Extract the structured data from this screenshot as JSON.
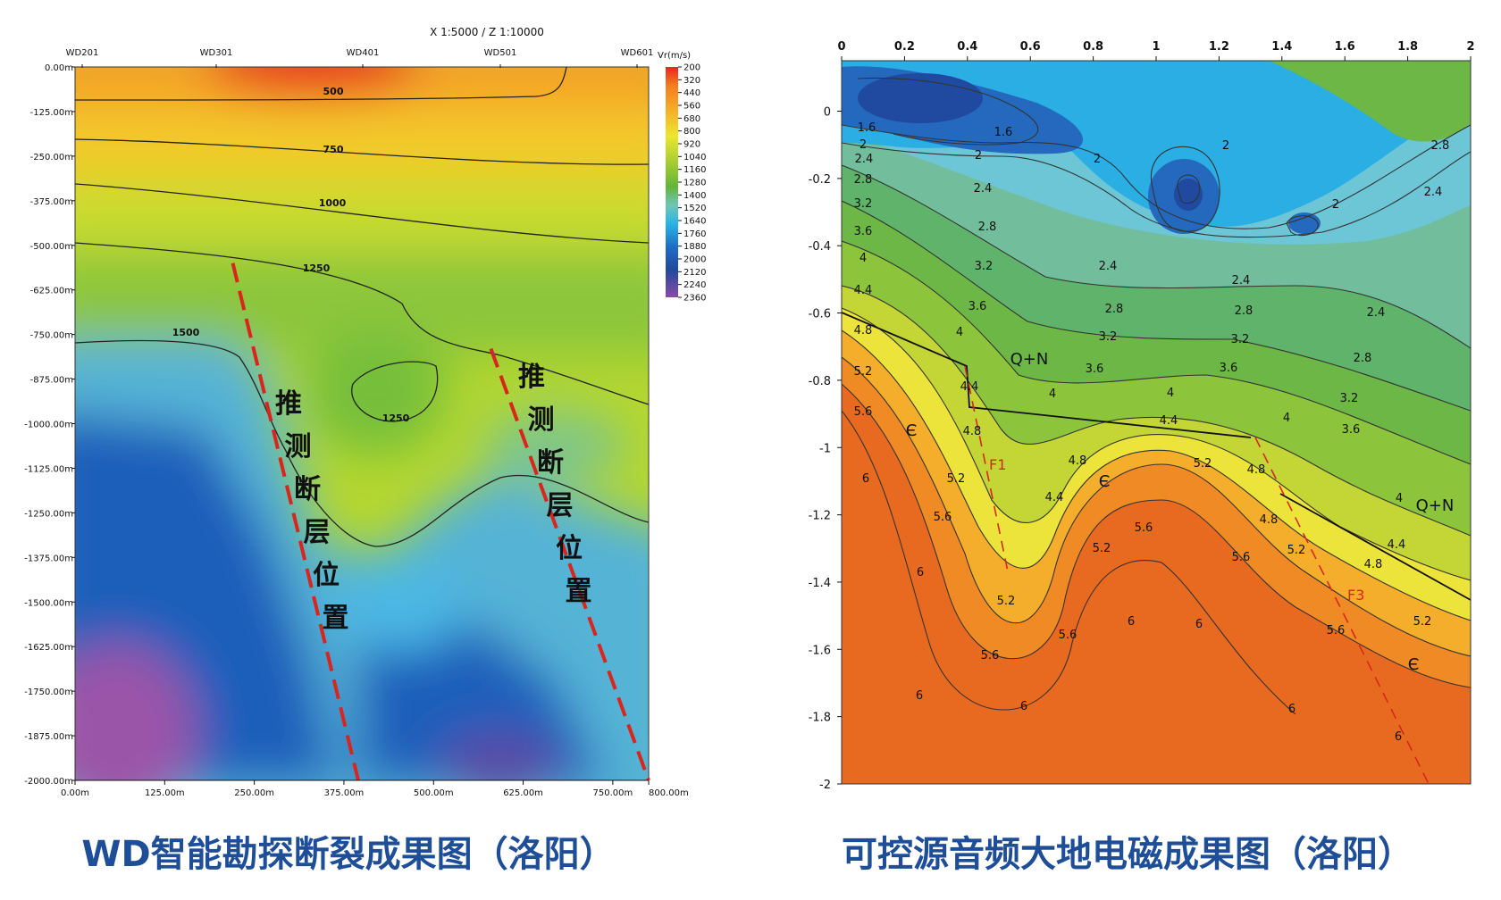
{
  "chart_data": [
    {
      "type": "heatmap",
      "title": "WD智能勘探断裂成果图（洛阳）",
      "scale": "X 1:5000 / Z 1:10000",
      "wells": [
        "WD201",
        "WD301",
        "WD401",
        "WD501",
        "WD601"
      ],
      "x_ticks": [
        "0.00m",
        "125.00m",
        "250.00m",
        "375.00m",
        "500.00m",
        "625.00m",
        "750.00m",
        "800.00m"
      ],
      "y_ticks": [
        "0.00m",
        "-125.00m",
        "-250.00m",
        "-375.00m",
        "-500.00m",
        "-625.00m",
        "-750.00m",
        "-875.00m",
        "-1000.00m",
        "-1125.00m",
        "-1250.00m",
        "-1375.00m",
        "-1500.00m",
        "-1625.00m",
        "-1750.00m",
        "-1875.00m",
        "-2000.00m"
      ],
      "xlim": [
        0,
        800
      ],
      "ylim": [
        -2000,
        0
      ],
      "colorbar_unit": "Vr(m/s)",
      "colorbar_ticks": [
        "200",
        "320",
        "440",
        "560",
        "680",
        "800",
        "920",
        "1040",
        "1160",
        "1280",
        "1400",
        "1520",
        "1640",
        "1760",
        "1880",
        "2000",
        "2120",
        "2240",
        "2360"
      ],
      "contour_labels": [
        "500",
        "750",
        "1000",
        "1250",
        "1500",
        "1250"
      ],
      "fault_label": "推测断层位置",
      "faults": [
        {
          "top": [
            220,
            -550
          ],
          "bottom": [
            395,
            -2000
          ]
        },
        {
          "top": [
            580,
            -790
          ],
          "bottom": [
            800,
            -2000
          ]
        }
      ]
    },
    {
      "type": "heatmap",
      "title": "可控源音频大地电磁成果图（洛阳）",
      "x_ticks": [
        "0",
        "0.2",
        "0.4",
        "0.6",
        "0.8",
        "1",
        "1.2",
        "1.4",
        "1.6",
        "1.8",
        "2"
      ],
      "y_ticks": [
        "0",
        "-0.2",
        "-0.4",
        "-0.6",
        "-0.8",
        "-1",
        "-1.2",
        "-1.4",
        "-1.6",
        "-1.8",
        "-2"
      ],
      "xlim": [
        0,
        2
      ],
      "ylim": [
        -2,
        0.15
      ],
      "contour_labels": [
        "1.6",
        "1.6",
        "2",
        "2",
        "2",
        "2",
        "2",
        "2.4",
        "2.4",
        "2.4",
        "2.4",
        "2.4",
        "2.4",
        "2.8",
        "2.8",
        "2.8",
        "2.8",
        "2.8",
        "2.8",
        "3.2",
        "3.2",
        "3.2",
        "3.2",
        "3.2",
        "3.6",
        "3.6",
        "3.6",
        "3.6",
        "3.6",
        "4",
        "4",
        "4",
        "4",
        "4",
        "4",
        "4.4",
        "4.4",
        "4.4",
        "4.4",
        "4.4",
        "4.8",
        "4.8",
        "4.8",
        "4.8",
        "4.8",
        "4.8",
        "5.2",
        "5.2",
        "5.2",
        "5.2",
        "5.2",
        "5.2",
        "5.2",
        "5.6",
        "5.6",
        "5.6",
        "5.6",
        "5.6",
        "5.6",
        "5.6",
        "6",
        "6",
        "6",
        "6",
        "6",
        "6",
        "6",
        "6"
      ],
      "region_labels": [
        "Q+N",
        "Q+N",
        "Є",
        "Є",
        "Є"
      ],
      "fault_labels": [
        "F1",
        "F3"
      ]
    }
  ]
}
